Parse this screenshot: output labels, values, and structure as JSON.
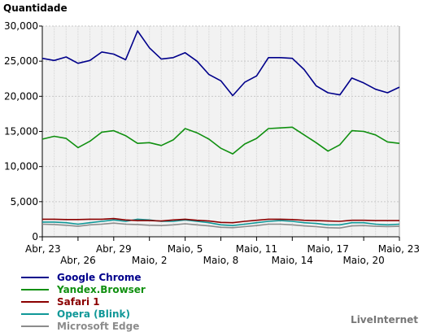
{
  "chart_data": {
    "type": "line",
    "title": "",
    "ylabel": "Quantidade",
    "xlabel": "",
    "ylim": [
      0,
      30000
    ],
    "yticks": [
      0,
      5000,
      10000,
      15000,
      20000,
      25000,
      30000
    ],
    "ytick_labels": [
      "0",
      "5,000",
      "10,000",
      "15,000",
      "20,000",
      "25,000",
      "30,000"
    ],
    "grid": true,
    "legend_position": "bottom-left",
    "x": [
      "Abr, 23",
      "Abr, 24",
      "Abr, 25",
      "Abr, 26",
      "Abr, 27",
      "Abr, 28",
      "Abr, 29",
      "Abr, 30",
      "Maio, 1",
      "Maio, 2",
      "Maio, 3",
      "Maio, 4",
      "Maio, 5",
      "Maio, 6",
      "Maio, 7",
      "Maio, 8",
      "Maio, 9",
      "Maio, 10",
      "Maio, 11",
      "Maio, 12",
      "Maio, 13",
      "Maio, 14",
      "Maio, 15",
      "Maio, 16",
      "Maio, 17",
      "Maio, 18",
      "Maio, 19",
      "Maio, 20",
      "Maio, 21",
      "Maio, 22",
      "Maio, 23"
    ],
    "xtick_labels": [
      {
        "index": 0,
        "label": "Abr, 23",
        "row": 1
      },
      {
        "index": 3,
        "label": "Abr, 26",
        "row": 2
      },
      {
        "index": 6,
        "label": "Abr, 29",
        "row": 1
      },
      {
        "index": 9,
        "label": "Maio, 2",
        "row": 2
      },
      {
        "index": 12,
        "label": "Maio, 5",
        "row": 1
      },
      {
        "index": 15,
        "label": "Maio, 8",
        "row": 2
      },
      {
        "index": 18,
        "label": "Maio, 11",
        "row": 1
      },
      {
        "index": 21,
        "label": "Maio, 14",
        "row": 2
      },
      {
        "index": 24,
        "label": "Maio, 17",
        "row": 1
      },
      {
        "index": 27,
        "label": "Maio, 20",
        "row": 2
      },
      {
        "index": 30,
        "label": "Maio, 23",
        "row": 1
      }
    ],
    "series": [
      {
        "name": "Google Chrome",
        "color": "#00008b",
        "values": [
          25400,
          25100,
          25600,
          24700,
          25100,
          26300,
          26000,
          25200,
          29300,
          26900,
          25300,
          25500,
          26200,
          25000,
          23100,
          22200,
          20100,
          22000,
          22900,
          25500,
          25500,
          25400,
          23800,
          21500,
          20500,
          20200,
          22600,
          21900,
          21000,
          20500,
          21300
        ]
      },
      {
        "name": "Yandex.Browser",
        "color": "#109010",
        "values": [
          13900,
          14300,
          14000,
          12700,
          13600,
          14900,
          15100,
          14400,
          13300,
          13400,
          13000,
          13800,
          15400,
          14800,
          13900,
          12600,
          11800,
          13200,
          14000,
          15400,
          15500,
          15600,
          14500,
          13400,
          12200,
          13100,
          15100,
          15000,
          14500,
          13500,
          13300
        ]
      },
      {
        "name": "Safari 1",
        "color": "#8b0000",
        "values": [
          2500,
          2500,
          2450,
          2450,
          2500,
          2500,
          2600,
          2400,
          2300,
          2300,
          2250,
          2400,
          2500,
          2350,
          2250,
          2050,
          2000,
          2200,
          2350,
          2500,
          2500,
          2450,
          2350,
          2300,
          2250,
          2200,
          2350,
          2350,
          2300,
          2300,
          2300
        ]
      },
      {
        "name": "Opera (Blink)",
        "color": "#109898",
        "values": [
          2100,
          2100,
          2000,
          1800,
          2000,
          2200,
          2400,
          2200,
          2500,
          2400,
          2200,
          2200,
          2400,
          2200,
          2000,
          1700,
          1600,
          1800,
          2000,
          2200,
          2300,
          2200,
          2000,
          1900,
          1700,
          1700,
          2000,
          2000,
          1800,
          1700,
          1800
        ]
      },
      {
        "name": "Microsoft Edge",
        "color": "#8c8c8c",
        "values": [
          1800,
          1750,
          1650,
          1500,
          1700,
          1800,
          1950,
          1800,
          1750,
          1650,
          1600,
          1700,
          1850,
          1700,
          1550,
          1350,
          1300,
          1450,
          1600,
          1800,
          1800,
          1700,
          1550,
          1450,
          1300,
          1250,
          1550,
          1600,
          1500,
          1450,
          1500
        ]
      }
    ]
  },
  "branding": "LiveInternet"
}
